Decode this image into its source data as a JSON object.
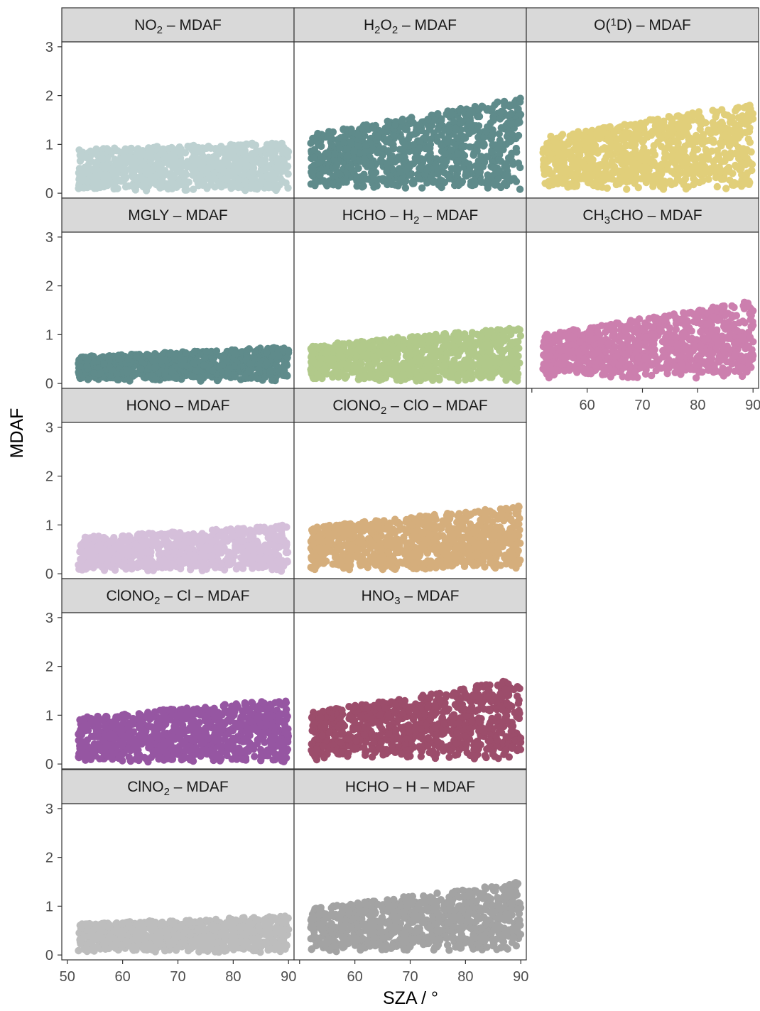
{
  "chart_data": {
    "type": "scatter",
    "layout": "facet-grid",
    "xlabel": "SZA / °",
    "ylabel": "MDAF",
    "xlim": [
      49,
      91
    ],
    "ylim": [
      -0.1,
      3.1
    ],
    "x_ticks": [
      50,
      60,
      70,
      80,
      90
    ],
    "y_ticks": [
      0,
      1,
      2,
      3
    ],
    "grid": false,
    "legend": "none",
    "panels": [
      {
        "label_parts": [
          {
            "t": "NO"
          },
          {
            "t": "2",
            "sub": true
          },
          {
            "t": " – MDAF"
          }
        ],
        "color": "#bdd1d1",
        "ymin_base": 0.1,
        "ymax_start": 0.9,
        "ymax_end": 1.05,
        "x_range": [
          52,
          90
        ],
        "n": 800
      },
      {
        "label_parts": [
          {
            "t": "H"
          },
          {
            "t": "2",
            "sub": true
          },
          {
            "t": "O"
          },
          {
            "t": "2",
            "sub": true
          },
          {
            "t": " – MDAF"
          }
        ],
        "color": "#5f8b8b",
        "ymin_base": 0.15,
        "ymax_start": 1.2,
        "ymax_end": 1.95,
        "x_range": [
          52,
          90
        ],
        "n": 900
      },
      {
        "label_parts": [
          {
            "t": "O("
          },
          {
            "t": "1",
            "sup": true
          },
          {
            "t": "D) – MDAF"
          }
        ],
        "color": "#e1cf7a",
        "ymin_base": 0.15,
        "ymax_start": 1.15,
        "ymax_end": 1.85,
        "x_range": [
          52,
          90
        ],
        "n": 900
      },
      {
        "label_parts": [
          {
            "t": "MGLY – MDAF"
          }
        ],
        "color": "#5f8b8b",
        "ymin_base": 0.1,
        "ymax_start": 0.55,
        "ymax_end": 0.75,
        "x_range": [
          52,
          90
        ],
        "n": 800
      },
      {
        "label_parts": [
          {
            "t": "HCHO – H"
          },
          {
            "t": "2",
            "sub": true
          },
          {
            "t": " – MDAF"
          }
        ],
        "color": "#b1c98a",
        "ymin_base": 0.1,
        "ymax_start": 0.8,
        "ymax_end": 1.15,
        "x_range": [
          52,
          90
        ],
        "n": 900
      },
      {
        "label_parts": [
          {
            "t": "CH"
          },
          {
            "t": "3",
            "sub": true
          },
          {
            "t": "CHO – MDAF"
          }
        ],
        "color": "#cc7fae",
        "ymin_base": 0.2,
        "ymax_start": 1.0,
        "ymax_end": 1.7,
        "x_range": [
          52,
          90
        ],
        "n": 900
      },
      {
        "label_parts": [
          {
            "t": "HONO – MDAF"
          }
        ],
        "color": "#d5bfda",
        "ymin_base": 0.1,
        "ymax_start": 0.75,
        "ymax_end": 1.0,
        "x_range": [
          52,
          90
        ],
        "n": 800
      },
      {
        "label_parts": [
          {
            "t": "ClONO"
          },
          {
            "t": "2",
            "sub": true
          },
          {
            "t": " – ClO – MDAF"
          }
        ],
        "color": "#d5ae7c",
        "ymin_base": 0.15,
        "ymax_start": 0.95,
        "ymax_end": 1.4,
        "x_range": [
          52,
          90
        ],
        "n": 900
      },
      {
        "label_parts": [
          {
            "t": "ClONO"
          },
          {
            "t": "2",
            "sub": true
          },
          {
            "t": " – Cl – MDAF"
          }
        ],
        "color": "#9656a2",
        "ymin_base": 0.1,
        "ymax_start": 0.95,
        "ymax_end": 1.35,
        "x_range": [
          52,
          90
        ],
        "n": 900
      },
      {
        "label_parts": [
          {
            "t": "HNO"
          },
          {
            "t": "3",
            "sub": true
          },
          {
            "t": " – MDAF"
          }
        ],
        "color": "#9c4d6b",
        "ymin_base": 0.2,
        "ymax_start": 1.05,
        "ymax_end": 1.75,
        "x_range": [
          52,
          90
        ],
        "n": 900
      },
      {
        "label_parts": [
          {
            "t": "ClNO"
          },
          {
            "t": "2",
            "sub": true
          },
          {
            "t": " – MDAF"
          }
        ],
        "color": "#bdbdbd",
        "ymin_base": 0.1,
        "ymax_start": 0.65,
        "ymax_end": 0.8,
        "x_range": [
          52,
          90
        ],
        "n": 800
      },
      {
        "label_parts": [
          {
            "t": "HCHO – H – MDAF"
          }
        ],
        "color": "#a3a3a3",
        "ymin_base": 0.15,
        "ymax_start": 0.95,
        "ymax_end": 1.5,
        "x_range": [
          52,
          90
        ],
        "n": 900
      }
    ]
  }
}
